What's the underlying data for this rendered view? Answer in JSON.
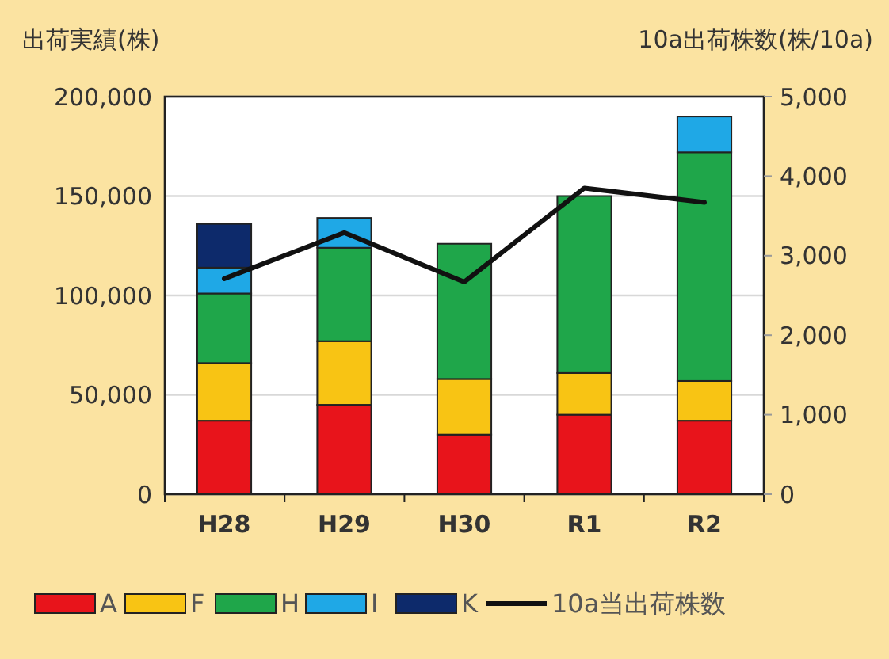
{
  "chart_data": {
    "type": "bar",
    "stacked": true,
    "categories": [
      "H28",
      "H29",
      "H30",
      "R1",
      "R2"
    ],
    "ylabel": "出荷実績(株)",
    "y2label": "10a出荷株数(株/10a)",
    "ylim": [
      0,
      200000
    ],
    "yticks": [
      {
        "value": 0,
        "label": "0"
      },
      {
        "value": 50000,
        "label": "50,000"
      },
      {
        "value": 100000,
        "label": "100,000"
      },
      {
        "value": 150000,
        "label": "150,000"
      },
      {
        "value": 200000,
        "label": "200,000"
      }
    ],
    "y2lim": [
      0,
      5000
    ],
    "y2ticks": [
      {
        "value": 0,
        "label": "0"
      },
      {
        "value": 1000,
        "label": "1,000"
      },
      {
        "value": 2000,
        "label": "2,000"
      },
      {
        "value": 3000,
        "label": "3,000"
      },
      {
        "value": 4000,
        "label": "4,000"
      },
      {
        "value": 5000,
        "label": "5,000"
      }
    ],
    "grid": "y",
    "legend": "bottom",
    "series": [
      {
        "name": "A",
        "color": "#e8141b",
        "values": [
          37000,
          45000,
          30000,
          40000,
          37000
        ]
      },
      {
        "name": "F",
        "color": "#f8c414",
        "values": [
          29000,
          32000,
          28000,
          21000,
          20000
        ]
      },
      {
        "name": "H",
        "color": "#1fa64a",
        "values": [
          35000,
          47000,
          68000,
          89000,
          115000
        ]
      },
      {
        "name": "I",
        "color": "#1fa8e6",
        "values": [
          13000,
          15000,
          null,
          null,
          18000
        ]
      },
      {
        "name": "K",
        "color": "#0d2a6b",
        "values": [
          22000,
          null,
          null,
          null,
          null
        ]
      },
      {
        "name": "10a当出荷株数",
        "type": "line",
        "axis": "y2",
        "color": "#111111",
        "values": [
          2710,
          3290,
          2670,
          3850,
          3670
        ]
      }
    ]
  }
}
